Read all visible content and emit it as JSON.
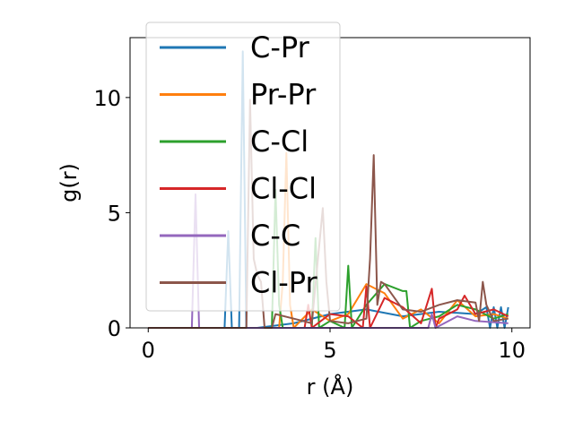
{
  "chart_data": {
    "type": "line",
    "xlabel": "r (Å)",
    "ylabel": "g(r)",
    "xlim": [
      -0.5,
      10.5
    ],
    "ylim": [
      0,
      12.6
    ],
    "xticks": [
      0,
      5,
      10
    ],
    "yticks": [
      0,
      5,
      10
    ],
    "grid": false,
    "legend_position": "upper-left, overlapping plot",
    "series": [
      {
        "name": "C-Pr",
        "color": "#1f77b4",
        "x": [
          0,
          2.0,
          2.1,
          2.2,
          2.3,
          2.5,
          2.6,
          2.7,
          2.8,
          3.0,
          4.0,
          5.0,
          6.0,
          7.0,
          8.0,
          9.0,
          9.3,
          9.4,
          9.5,
          9.6,
          9.7,
          9.8,
          9.9
        ],
        "y": [
          0,
          0,
          0,
          4.2,
          0,
          0,
          12.0,
          0,
          0,
          0,
          0.2,
          0.6,
          0.8,
          0.5,
          0.7,
          0.6,
          0.9,
          0.0,
          0.9,
          0.0,
          0.9,
          0.0,
          0.9
        ]
      },
      {
        "name": "Pr-Pr",
        "color": "#ff7f0e",
        "x": [
          0,
          3.6,
          3.7,
          3.8,
          3.9,
          4.0,
          4.5,
          5.0,
          5.5,
          6.0,
          6.5,
          7.0,
          7.5,
          8.0,
          8.5,
          9.0,
          9.5,
          9.9
        ],
        "y": [
          0,
          0,
          2.0,
          7.6,
          1.0,
          0,
          0.8,
          0.3,
          0.6,
          1.9,
          1.5,
          0.4,
          0.8,
          0.2,
          1.2,
          0.5,
          0.6,
          0.4
        ]
      },
      {
        "name": "C-Cl",
        "color": "#2ca02c",
        "x": [
          0,
          3.4,
          3.5,
          3.6,
          3.7,
          4.0,
          4.5,
          4.6,
          4.7,
          5.0,
          5.4,
          5.5,
          5.6,
          6.0,
          6.5,
          7.0,
          7.1,
          7.2,
          7.5,
          8.0,
          8.5,
          9.0,
          9.5,
          9.9
        ],
        "y": [
          0,
          0,
          6.0,
          1.0,
          0,
          0,
          0,
          3.9,
          0,
          0.3,
          0,
          2.7,
          0,
          1.0,
          1.9,
          1.6,
          1.6,
          0,
          0.3,
          0.5,
          1.0,
          0.8,
          0.4,
          0.6
        ]
      },
      {
        "name": "Cl-Cl",
        "color": "#d62728",
        "x": [
          0,
          4.3,
          4.4,
          4.5,
          5.0,
          5.5,
          5.9,
          6.0,
          6.1,
          6.5,
          7.0,
          7.5,
          7.8,
          7.9,
          8.0,
          8.5,
          8.7,
          9.0,
          9.5,
          9.9
        ],
        "y": [
          0,
          0,
          1.0,
          0,
          0.6,
          0.5,
          0,
          1.8,
          0,
          1.3,
          0.9,
          0.2,
          1.7,
          0,
          0.4,
          0.8,
          1.4,
          0.6,
          0.8,
          0.5
        ]
      },
      {
        "name": "C-C",
        "color": "#9467bd",
        "x": [
          0,
          1.2,
          1.3,
          1.4,
          1.5,
          2.0,
          3.0,
          4.0,
          5.0,
          6.0,
          7.0,
          7.7,
          7.8,
          7.9,
          8.5,
          9.0,
          9.9
        ],
        "y": [
          0,
          0,
          5.8,
          0,
          0,
          0,
          0,
          0,
          0,
          0,
          0,
          0,
          0.6,
          0,
          0.5,
          0.3,
          0.2
        ]
      },
      {
        "name": "Cl-Pr",
        "color": "#8c564b",
        "x": [
          0,
          2.6,
          2.7,
          2.8,
          2.9,
          3.0,
          3.1,
          3.2,
          3.4,
          3.5,
          4.0,
          4.5,
          4.8,
          4.9,
          5.0,
          5.5,
          6.0,
          6.1,
          6.2,
          6.3,
          6.4,
          6.5,
          7.0,
          7.5,
          8.0,
          8.5,
          9.0,
          9.1,
          9.2,
          9.3,
          9.5,
          9.9
        ],
        "y": [
          0,
          0,
          0,
          9.9,
          3.0,
          2.3,
          2.0,
          0,
          0,
          0.6,
          0.4,
          0.2,
          5.2,
          2.0,
          0.3,
          0.2,
          0.4,
          3.0,
          7.5,
          1.0,
          2.0,
          1.9,
          0.8,
          0.7,
          1.0,
          1.2,
          1.1,
          0.3,
          2.0,
          1.0,
          0.3,
          0.4
        ]
      }
    ]
  }
}
